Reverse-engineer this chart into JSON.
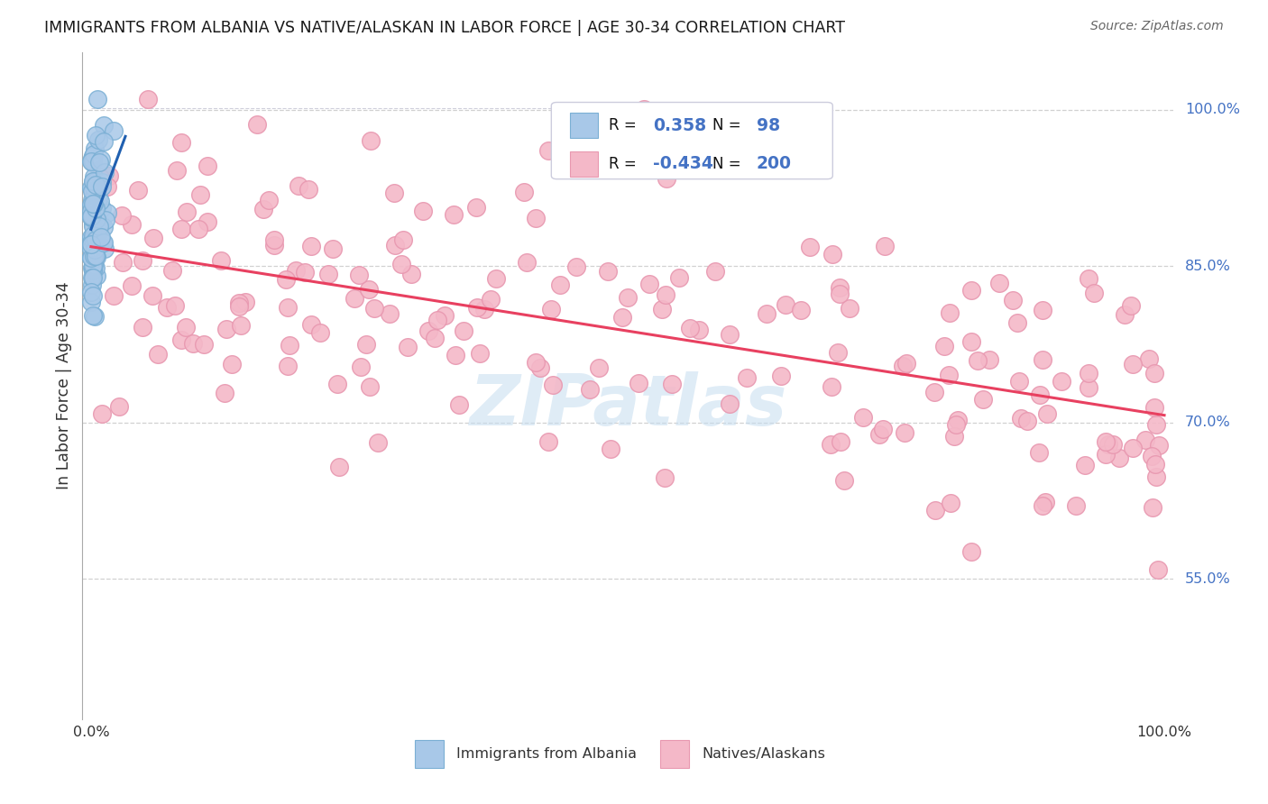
{
  "title": "IMMIGRANTS FROM ALBANIA VS NATIVE/ALASKAN IN LABOR FORCE | AGE 30-34 CORRELATION CHART",
  "source": "Source: ZipAtlas.com",
  "ylabel": "In Labor Force | Age 30-34",
  "ytick_labels": [
    "100.0%",
    "85.0%",
    "70.0%",
    "55.0%"
  ],
  "ytick_values": [
    1.0,
    0.85,
    0.7,
    0.55
  ],
  "blue_color": "#a8c8e8",
  "blue_edge": "#7aafd4",
  "pink_color": "#f4b8c8",
  "pink_edge": "#e898b0",
  "trendline_blue": "#2060b0",
  "trendline_pink": "#e84060",
  "watermark": "ZIPatlas",
  "legend_label1": "Immigrants from Albania",
  "legend_label2": "Natives/Alaskans",
  "grid_color": "#cccccc",
  "r1": "0.358",
  "n1": "98",
  "r2": "-0.434",
  "n2": "200",
  "blue_seed": 12,
  "pink_seed": 99
}
